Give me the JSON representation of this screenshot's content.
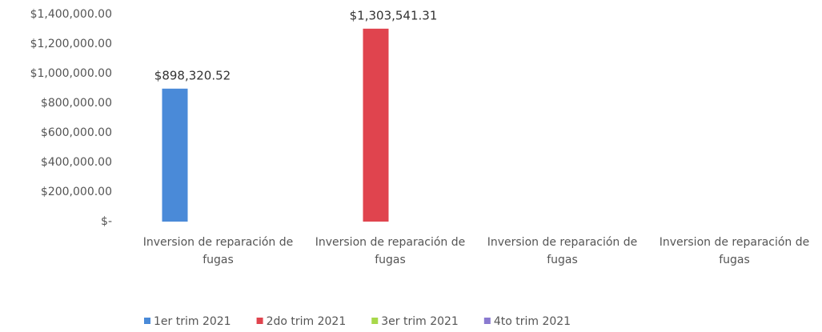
{
  "chart_data": {
    "type": "bar",
    "categories": [
      "Inversion de reparación de fugas",
      "Inversion de reparación de fugas",
      "Inversion de reparación de fugas",
      "Inversion de reparación de fugas"
    ],
    "series": [
      {
        "name": "1er trim 2021",
        "color": "#4a8ad8",
        "values": [
          898320.52,
          null,
          null,
          null
        ],
        "value_labels": [
          "$898,320.52",
          null,
          null,
          null
        ]
      },
      {
        "name": "2do trim 2021",
        "color": "#e0444e",
        "values": [
          null,
          1303541.31,
          null,
          null
        ],
        "value_labels": [
          null,
          "$1,303,541.31",
          null,
          null
        ]
      },
      {
        "name": "3er trim 2021",
        "color": "#a8d84a",
        "values": [
          null,
          null,
          null,
          null
        ]
      },
      {
        "name": "4to trim 2021",
        "color": "#8a7ad0",
        "values": [
          null,
          null,
          null,
          null
        ]
      }
    ],
    "ylim": [
      0,
      1400000
    ],
    "yticks": [
      {
        "value": 0,
        "label": "$-"
      },
      {
        "value": 200000,
        "label": "$200,000.00"
      },
      {
        "value": 400000,
        "label": "$400,000.00"
      },
      {
        "value": 600000,
        "label": "$600,000.00"
      },
      {
        "value": 800000,
        "label": "$800,000.00"
      },
      {
        "value": 1000000,
        "label": "$1,000,000.00"
      },
      {
        "value": 1200000,
        "label": "$1,200,000.00"
      },
      {
        "value": 1400000,
        "label": "$1,400,000.00"
      }
    ],
    "grid": false
  }
}
